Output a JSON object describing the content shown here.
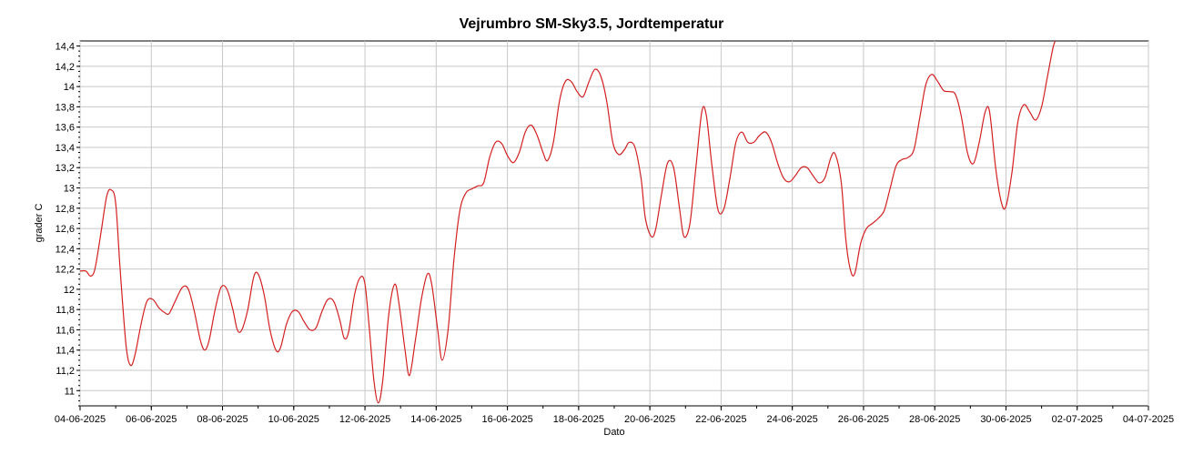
{
  "chart_data": {
    "type": "line",
    "title": "Vejrumbro SM-Sky3.5, Jordtemperatur",
    "xlabel": "Dato",
    "ylabel": "grader C",
    "grid": true,
    "legend": "none",
    "ylim": [
      10.85,
      14.45
    ],
    "xlim": [
      "04-06-2025",
      "04-07-2025"
    ],
    "y_ticks": [
      "11",
      "11,2",
      "11,4",
      "11,6",
      "11,8",
      "12",
      "12,2",
      "12,4",
      "12,6",
      "12,8",
      "13",
      "13,2",
      "13,4",
      "13,6",
      "13,8",
      "14",
      "14,2",
      "14,4"
    ],
    "x_ticks": [
      "04-06-2025",
      "06-06-2025",
      "08-06-2025",
      "10-06-2025",
      "12-06-2025",
      "14-06-2025",
      "16-06-2025",
      "18-06-2025",
      "20-06-2025",
      "22-06-2025",
      "24-06-2025",
      "26-06-2025",
      "28-06-2025",
      "30-06-2025",
      "02-07-2025",
      "04-07-2025"
    ],
    "series": [
      {
        "color": "#d42020",
        "points": [
          [
            "2025-06-04 00:00",
            12.18
          ],
          [
            "2025-06-04 04:00",
            12.18
          ],
          [
            "2025-06-04 07:00",
            12.13
          ],
          [
            "2025-06-04 10:00",
            12.2
          ],
          [
            "2025-06-04 14:00",
            12.55
          ],
          [
            "2025-06-04 18:00",
            12.92
          ],
          [
            "2025-06-04 21:00",
            12.98
          ],
          [
            "2025-06-05 00:00",
            12.85
          ],
          [
            "2025-06-05 03:00",
            12.2
          ],
          [
            "2025-06-05 07:00",
            11.45
          ],
          [
            "2025-06-05 10:00",
            11.25
          ],
          [
            "2025-06-05 13:00",
            11.35
          ],
          [
            "2025-06-05 17:00",
            11.65
          ],
          [
            "2025-06-05 21:00",
            11.88
          ],
          [
            "2025-06-06 01:00",
            11.9
          ],
          [
            "2025-06-06 05:00",
            11.82
          ],
          [
            "2025-06-06 09:00",
            11.77
          ],
          [
            "2025-06-06 12:00",
            11.76
          ],
          [
            "2025-06-06 16:00",
            11.88
          ],
          [
            "2025-06-06 21:00",
            12.02
          ],
          [
            "2025-06-07 01:00",
            12.0
          ],
          [
            "2025-06-07 05:00",
            11.78
          ],
          [
            "2025-06-07 09:00",
            11.5
          ],
          [
            "2025-06-07 12:00",
            11.4
          ],
          [
            "2025-06-07 15:00",
            11.5
          ],
          [
            "2025-06-07 19:00",
            11.8
          ],
          [
            "2025-06-07 23:00",
            12.02
          ],
          [
            "2025-06-08 03:00",
            12.0
          ],
          [
            "2025-06-08 07:00",
            11.8
          ],
          [
            "2025-06-08 10:00",
            11.6
          ],
          [
            "2025-06-08 13:00",
            11.6
          ],
          [
            "2025-06-08 17:00",
            11.8
          ],
          [
            "2025-06-08 21:00",
            12.12
          ],
          [
            "2025-06-09 00:00",
            12.15
          ],
          [
            "2025-06-09 04:00",
            11.95
          ],
          [
            "2025-06-09 08:00",
            11.6
          ],
          [
            "2025-06-09 12:00",
            11.4
          ],
          [
            "2025-06-09 15:00",
            11.42
          ],
          [
            "2025-06-09 19:00",
            11.65
          ],
          [
            "2025-06-09 23:00",
            11.78
          ],
          [
            "2025-06-10 03:00",
            11.78
          ],
          [
            "2025-06-10 07:00",
            11.68
          ],
          [
            "2025-06-10 11:00",
            11.6
          ],
          [
            "2025-06-10 15:00",
            11.62
          ],
          [
            "2025-06-10 19:00",
            11.78
          ],
          [
            "2025-06-10 23:00",
            11.9
          ],
          [
            "2025-06-11 03:00",
            11.88
          ],
          [
            "2025-06-11 07:00",
            11.7
          ],
          [
            "2025-06-11 10:00",
            11.52
          ],
          [
            "2025-06-11 13:00",
            11.58
          ],
          [
            "2025-06-11 17:00",
            11.95
          ],
          [
            "2025-06-11 21:00",
            12.12
          ],
          [
            "2025-06-12 00:00",
            12.05
          ],
          [
            "2025-06-12 03:00",
            11.6
          ],
          [
            "2025-06-12 06:00",
            11.1
          ],
          [
            "2025-06-12 09:00",
            10.88
          ],
          [
            "2025-06-12 12:00",
            11.1
          ],
          [
            "2025-06-12 16:00",
            11.75
          ],
          [
            "2025-06-12 20:00",
            12.05
          ],
          [
            "2025-06-12 23:00",
            11.85
          ],
          [
            "2025-06-13 03:00",
            11.4
          ],
          [
            "2025-06-13 06:00",
            11.15
          ],
          [
            "2025-06-13 10:00",
            11.5
          ],
          [
            "2025-06-13 14:00",
            11.9
          ],
          [
            "2025-06-13 18:00",
            12.15
          ],
          [
            "2025-06-13 21:00",
            12.05
          ],
          [
            "2025-06-14 01:00",
            11.6
          ],
          [
            "2025-06-14 04:00",
            11.3
          ],
          [
            "2025-06-14 08:00",
            11.6
          ],
          [
            "2025-06-14 12:00",
            12.3
          ],
          [
            "2025-06-14 16:00",
            12.78
          ],
          [
            "2025-06-14 20:00",
            12.95
          ],
          [
            "2025-06-15 00:00",
            12.99
          ],
          [
            "2025-06-15 04:00",
            13.02
          ],
          [
            "2025-06-15 08:00",
            13.05
          ],
          [
            "2025-06-15 12:00",
            13.3
          ],
          [
            "2025-06-15 16:00",
            13.45
          ],
          [
            "2025-06-15 20:00",
            13.44
          ],
          [
            "2025-06-16 00:00",
            13.32
          ],
          [
            "2025-06-16 04:00",
            13.25
          ],
          [
            "2025-06-16 08:00",
            13.35
          ],
          [
            "2025-06-16 12:00",
            13.55
          ],
          [
            "2025-06-16 16:00",
            13.62
          ],
          [
            "2025-06-16 20:00",
            13.52
          ],
          [
            "2025-06-17 00:00",
            13.35
          ],
          [
            "2025-06-17 03:00",
            13.27
          ],
          [
            "2025-06-17 07:00",
            13.45
          ],
          [
            "2025-06-17 11:00",
            13.85
          ],
          [
            "2025-06-17 15:00",
            14.05
          ],
          [
            "2025-06-17 19:00",
            14.05
          ],
          [
            "2025-06-17 23:00",
            13.95
          ],
          [
            "2025-06-18 03:00",
            13.9
          ],
          [
            "2025-06-18 07:00",
            14.05
          ],
          [
            "2025-06-18 11:00",
            14.17
          ],
          [
            "2025-06-18 15:00",
            14.1
          ],
          [
            "2025-06-18 19:00",
            13.85
          ],
          [
            "2025-06-18 23:00",
            13.45
          ],
          [
            "2025-06-19 03:00",
            13.33
          ],
          [
            "2025-06-19 07:00",
            13.38
          ],
          [
            "2025-06-19 10:00",
            13.45
          ],
          [
            "2025-06-19 14:00",
            13.4
          ],
          [
            "2025-06-19 18:00",
            13.1
          ],
          [
            "2025-06-19 21:00",
            12.7
          ],
          [
            "2025-06-20 01:00",
            12.52
          ],
          [
            "2025-06-20 04:00",
            12.6
          ],
          [
            "2025-06-20 08:00",
            12.95
          ],
          [
            "2025-06-20 12:00",
            13.25
          ],
          [
            "2025-06-20 16:00",
            13.2
          ],
          [
            "2025-06-20 20:00",
            12.8
          ],
          [
            "2025-06-20 23:00",
            12.52
          ],
          [
            "2025-06-21 03:00",
            12.65
          ],
          [
            "2025-06-21 07:00",
            13.2
          ],
          [
            "2025-06-21 11:00",
            13.75
          ],
          [
            "2025-06-21 14:00",
            13.72
          ],
          [
            "2025-06-21 18:00",
            13.2
          ],
          [
            "2025-06-21 22:00",
            12.78
          ],
          [
            "2025-06-22 02:00",
            12.8
          ],
          [
            "2025-06-22 06:00",
            13.1
          ],
          [
            "2025-06-22 10:00",
            13.45
          ],
          [
            "2025-06-22 14:00",
            13.55
          ],
          [
            "2025-06-22 18:00",
            13.45
          ],
          [
            "2025-06-22 22:00",
            13.45
          ],
          [
            "2025-06-23 02:00",
            13.52
          ],
          [
            "2025-06-23 06:00",
            13.55
          ],
          [
            "2025-06-23 10:00",
            13.45
          ],
          [
            "2025-06-23 14:00",
            13.25
          ],
          [
            "2025-06-23 18:00",
            13.1
          ],
          [
            "2025-06-23 22:00",
            13.06
          ],
          [
            "2025-06-24 02:00",
            13.12
          ],
          [
            "2025-06-24 06:00",
            13.2
          ],
          [
            "2025-06-24 10:00",
            13.2
          ],
          [
            "2025-06-24 14:00",
            13.12
          ],
          [
            "2025-06-24 18:00",
            13.05
          ],
          [
            "2025-06-24 22:00",
            13.1
          ],
          [
            "2025-06-25 02:00",
            13.3
          ],
          [
            "2025-06-25 05:00",
            13.33
          ],
          [
            "2025-06-25 09:00",
            13.05
          ],
          [
            "2025-06-25 12:00",
            12.5
          ],
          [
            "2025-06-25 15:00",
            12.2
          ],
          [
            "2025-06-25 18:00",
            12.15
          ],
          [
            "2025-06-25 22:00",
            12.45
          ],
          [
            "2025-06-26 02:00",
            12.6
          ],
          [
            "2025-06-26 06:00",
            12.65
          ],
          [
            "2025-06-26 10:00",
            12.7
          ],
          [
            "2025-06-26 14:00",
            12.78
          ],
          [
            "2025-06-26 18:00",
            13.0
          ],
          [
            "2025-06-26 22:00",
            13.22
          ],
          [
            "2025-06-27 02:00",
            13.28
          ],
          [
            "2025-06-27 06:00",
            13.3
          ],
          [
            "2025-06-27 10:00",
            13.38
          ],
          [
            "2025-06-27 14:00",
            13.7
          ],
          [
            "2025-06-27 18:00",
            14.02
          ],
          [
            "2025-06-27 22:00",
            14.12
          ],
          [
            "2025-06-28 02:00",
            14.05
          ],
          [
            "2025-06-28 06:00",
            13.96
          ],
          [
            "2025-06-28 10:00",
            13.95
          ],
          [
            "2025-06-28 14:00",
            13.92
          ],
          [
            "2025-06-28 18:00",
            13.7
          ],
          [
            "2025-06-28 22:00",
            13.35
          ],
          [
            "2025-06-29 02:00",
            13.24
          ],
          [
            "2025-06-29 06:00",
            13.45
          ],
          [
            "2025-06-29 10:00",
            13.75
          ],
          [
            "2025-06-29 13:00",
            13.75
          ],
          [
            "2025-06-29 17:00",
            13.2
          ],
          [
            "2025-06-29 21:00",
            12.85
          ],
          [
            "2025-06-30 00:00",
            12.82
          ],
          [
            "2025-06-30 04:00",
            13.15
          ],
          [
            "2025-06-30 08:00",
            13.65
          ],
          [
            "2025-06-30 12:00",
            13.82
          ],
          [
            "2025-06-30 16:00",
            13.75
          ],
          [
            "2025-06-30 20:00",
            13.67
          ],
          [
            "2025-07-01 00:00",
            13.8
          ],
          [
            "2025-07-01 04:00",
            14.1
          ],
          [
            "2025-07-01 08:00",
            14.4
          ],
          [
            "2025-07-01 11:00",
            14.5
          ]
        ]
      }
    ]
  }
}
